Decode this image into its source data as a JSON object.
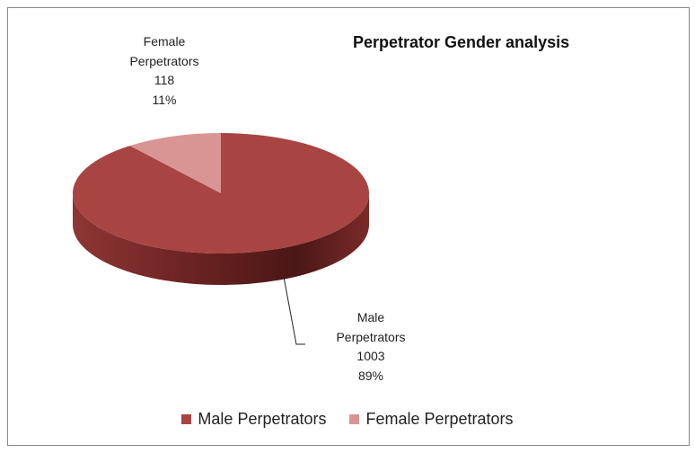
{
  "chart_data": {
    "type": "pie3d",
    "title": "Perpetrator Gender analysis",
    "categories": [
      "Male Perpetrators",
      "Female Perpetrators"
    ],
    "values": [
      1003,
      118
    ],
    "percent_labels": [
      "89%",
      "11%"
    ],
    "colors": [
      "#a84542",
      "#d99593"
    ],
    "legend": "bottom"
  }
}
